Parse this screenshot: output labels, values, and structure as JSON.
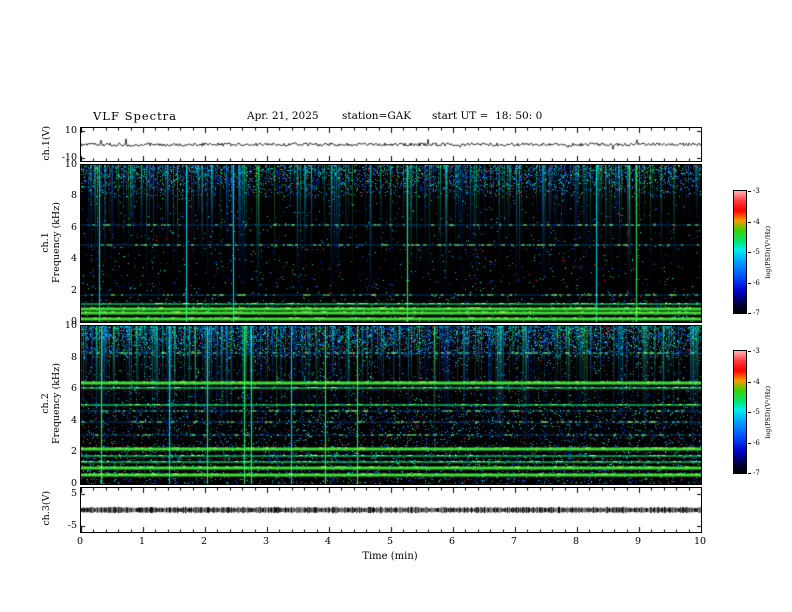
{
  "header": {
    "title": "VLF Spectra",
    "date": "Apr. 21, 2025",
    "station": "station=GAK",
    "start_ut": "start UT =  18: 50: 0"
  },
  "xaxis": {
    "label": "Time (min)",
    "range": [
      0,
      10
    ],
    "ticks": [
      0,
      1,
      2,
      3,
      4,
      5,
      6,
      7,
      8,
      9,
      10
    ]
  },
  "panels": {
    "ch1_wave": {
      "ylabel": "ch.1(V)",
      "yticks": [
        10,
        -10
      ]
    },
    "ch1_spec": {
      "ylabel_line1": "ch.1",
      "ylabel_line2": "Frequency (kHz)",
      "yticks": [
        10,
        8,
        6,
        4,
        2,
        0
      ]
    },
    "ch2_spec": {
      "ylabel_line1": "ch.2",
      "ylabel_line2": "Frequency (kHz)",
      "yticks": [
        10,
        8,
        6,
        4,
        2,
        0
      ]
    },
    "ch3_wave": {
      "ylabel": "ch.3(V)",
      "yticks": [
        5,
        -5
      ]
    }
  },
  "colorbar": {
    "label": "log(PSD)(V²/Hz)",
    "ticks": [
      -3,
      -4,
      -5,
      -6,
      -7
    ],
    "range_top_to_bottom": [
      -3,
      -7
    ],
    "gradient": [
      "#ffb4b4 0%",
      "#ff3c3c 8%",
      "#ff0000 16%",
      "#ff9600 24%",
      "#3cd200 32%",
      "#00e67d 42%",
      "#00f0f0 48%",
      "#00a0ff 58%",
      "#0050ff 70%",
      "#0000c8 82%",
      "#000032 94%",
      "#000000 100%"
    ]
  },
  "chart_data": [
    {
      "type": "line",
      "name": "ch.1 voltage waveform",
      "ylabel": "ch.1(V)",
      "yticks": [
        10,
        -10
      ],
      "x_range_min": [
        0,
        10
      ],
      "summary": "continuous broadband noise centred on 0 V, amplitude roughly ±1 V for the full 10 minutes"
    },
    {
      "type": "heatmap",
      "name": "ch.1 VLF spectrogram",
      "xlabel": "Time (min)",
      "ylabel": "ch.1 Frequency (kHz)",
      "x_range": [
        0,
        10
      ],
      "y_range": [
        0,
        10
      ],
      "z_label": "log(PSD)(V²/Hz)",
      "z_range": [
        -7,
        -3
      ],
      "background_level": -7,
      "sferic_count": 260,
      "strong_streaks": 6,
      "bands_khz": [
        {
          "f": 0.2,
          "strength": "strong"
        },
        {
          "f": 0.55,
          "strength": "strong"
        },
        {
          "f": 0.85,
          "strength": "strong"
        },
        {
          "f": 1.15,
          "strength": "medium"
        },
        {
          "f": 1.7,
          "strength": "weak"
        },
        {
          "f": 4.9,
          "strength": "weak"
        },
        {
          "f": 6.2,
          "strength": "weak"
        }
      ],
      "summary": "dark (≈ -7) background with dense vertical broadband sferic streaks, strongest speckle above 8 kHz, and bright quasi-steady emission bands below 1.5 kHz"
    },
    {
      "type": "heatmap",
      "name": "ch.2 VLF spectrogram",
      "xlabel": "Time (min)",
      "ylabel": "ch.2 Frequency (kHz)",
      "x_range": [
        0,
        10
      ],
      "y_range": [
        0,
        10
      ],
      "z_label": "log(PSD)(V²/Hz)",
      "z_range": [
        -7,
        -3
      ],
      "background_level": -7,
      "sferic_count": 320,
      "strong_streaks": 8,
      "bands_khz": [
        {
          "f": 0.6,
          "strength": "strong"
        },
        {
          "f": 1.0,
          "strength": "strong"
        },
        {
          "f": 1.4,
          "strength": "medium"
        },
        {
          "f": 1.8,
          "strength": "medium"
        },
        {
          "f": 2.2,
          "strength": "strong"
        },
        {
          "f": 3.1,
          "strength": "weak"
        },
        {
          "f": 3.9,
          "strength": "weak"
        },
        {
          "f": 4.6,
          "strength": "weak"
        },
        {
          "f": 5.0,
          "strength": "medium"
        },
        {
          "f": 6.1,
          "strength": "medium"
        },
        {
          "f": 6.4,
          "strength": "strong"
        },
        {
          "f": 8.3,
          "strength": "weak"
        }
      ],
      "summary": "denser speckle than ch.1 with many horizontal hum/emission lines and broadband vertical sferic streaks"
    },
    {
      "type": "line",
      "name": "ch.3 voltage waveform",
      "ylabel": "ch.3(V)",
      "yticks": [
        5,
        -5
      ],
      "x_range_min": [
        0,
        10
      ],
      "summary": "dense high-frequency oscillation forming a thick dark band centred on 0 V, amplitude roughly ±0.5 V"
    }
  ]
}
